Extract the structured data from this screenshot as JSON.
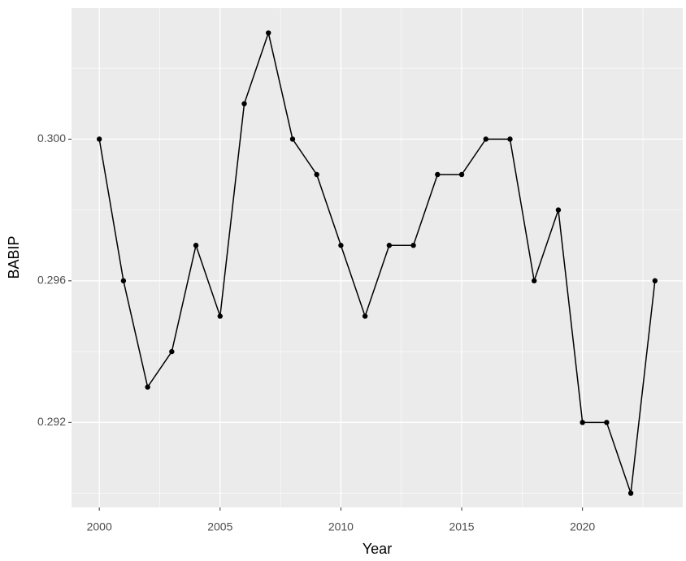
{
  "chart_data": {
    "type": "line",
    "x_label": "Year",
    "y_label": "BABIP",
    "x": [
      2000,
      2001,
      2002,
      2003,
      2004,
      2005,
      2006,
      2007,
      2008,
      2009,
      2010,
      2011,
      2012,
      2013,
      2014,
      2015,
      2016,
      2017,
      2018,
      2019,
      2020,
      2021,
      2022,
      2023
    ],
    "values": [
      0.3,
      0.296,
      0.293,
      0.294,
      0.297,
      0.295,
      0.301,
      0.303,
      0.3,
      0.299,
      0.297,
      0.295,
      0.297,
      0.297,
      0.299,
      0.299,
      0.3,
      0.3,
      0.296,
      0.298,
      0.292,
      0.292,
      0.29,
      0.296
    ],
    "color": "#000000",
    "xlim": [
      1998.85,
      2024.15
    ],
    "xticks": [
      2000,
      2005,
      2010,
      2015,
      2020
    ],
    "x_minor_grid": [
      2002.5,
      2007.5,
      2012.5,
      2017.5,
      2022.5
    ],
    "ylim": [
      0.2896,
      0.3037
    ],
    "yticks": [
      0.292,
      0.296,
      {
        "value": 0.3,
        "label": "0.300"
      }
    ],
    "y_minor_grid": [
      0.29,
      0.294,
      0.298,
      0.302
    ],
    "grid": true
  }
}
